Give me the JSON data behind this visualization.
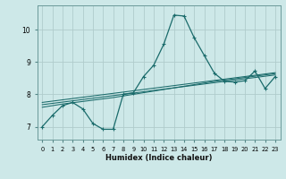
{
  "xlabel": "Humidex (Indice chaleur)",
  "background_color": "#cde8e8",
  "grid_color": "#b0cccc",
  "line_color": "#1a6b6b",
  "x": [
    0,
    1,
    2,
    3,
    4,
    5,
    6,
    7,
    8,
    9,
    10,
    11,
    12,
    13,
    14,
    15,
    16,
    17,
    18,
    19,
    20,
    21,
    22,
    23
  ],
  "y_main": [
    7.0,
    7.35,
    7.65,
    7.75,
    7.55,
    7.1,
    6.92,
    6.92,
    8.0,
    8.05,
    8.55,
    8.9,
    9.55,
    10.45,
    10.42,
    9.75,
    9.2,
    8.65,
    8.4,
    8.38,
    8.42,
    8.72,
    8.18,
    8.55
  ],
  "y_line1": [
    7.6,
    7.65,
    7.7,
    7.74,
    7.78,
    7.82,
    7.86,
    7.9,
    7.95,
    8.0,
    8.05,
    8.1,
    8.15,
    8.2,
    8.25,
    8.3,
    8.35,
    8.4,
    8.44,
    8.48,
    8.52,
    8.56,
    8.6,
    8.64
  ],
  "y_line2": [
    7.68,
    7.72,
    7.76,
    7.8,
    7.84,
    7.88,
    7.92,
    7.96,
    8.0,
    8.04,
    8.08,
    8.12,
    8.16,
    8.2,
    8.24,
    8.28,
    8.32,
    8.36,
    8.4,
    8.44,
    8.48,
    8.52,
    8.56,
    8.6
  ],
  "y_line3": [
    7.75,
    7.79,
    7.83,
    7.87,
    7.91,
    7.95,
    7.99,
    8.03,
    8.07,
    8.11,
    8.15,
    8.19,
    8.23,
    8.27,
    8.31,
    8.35,
    8.39,
    8.43,
    8.47,
    8.51,
    8.55,
    8.59,
    8.63,
    8.67
  ],
  "ylim": [
    6.6,
    10.75
  ],
  "xlim": [
    -0.5,
    23.5
  ],
  "yticks": [
    7,
    8,
    9,
    10
  ],
  "xticks": [
    0,
    1,
    2,
    3,
    4,
    5,
    6,
    7,
    8,
    9,
    10,
    11,
    12,
    13,
    14,
    15,
    16,
    17,
    18,
    19,
    20,
    21,
    22,
    23
  ],
  "xtick_labels": [
    "0",
    "1",
    "2",
    "3",
    "4",
    "5",
    "6",
    "7",
    "8",
    "9",
    "10",
    "11",
    "12",
    "13",
    "14",
    "15",
    "16",
    "17",
    "18",
    "19",
    "20",
    "21",
    "22",
    "23"
  ]
}
